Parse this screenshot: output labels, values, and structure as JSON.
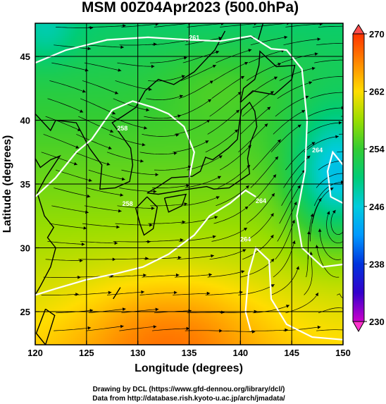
{
  "title": "MSM 00Z04Apr2023 (500.0hPa)",
  "footer": {
    "line1": "Drawing by DCL (https://www.gfd-dennou.org/library/dcl/)",
    "line2": "Data from http://database.rish.kyoto-u.ac.jp/arch/jmadata/"
  },
  "chart_data": {
    "type": "heatmap",
    "title": "MSM 00Z04Apr2023 (500.0hPa)",
    "xlabel": "Longitude (degrees)",
    "ylabel": "Latitude  (degrees)",
    "xlim": [
      120,
      150
    ],
    "ylim": [
      22.4,
      47.6
    ],
    "x_ticks": [
      "120",
      "125",
      "130",
      "135",
      "140",
      "145",
      "150"
    ],
    "x_tick_values": [
      120,
      125,
      130,
      135,
      140,
      145,
      150
    ],
    "y_ticks": [
      "25",
      "30",
      "35",
      "40",
      "45"
    ],
    "y_tick_values": [
      25,
      30,
      35,
      40,
      45
    ],
    "grid": true,
    "colorbar": {
      "range": [
        230,
        270
      ],
      "ticks": [
        "230",
        "238",
        "246",
        "254",
        "262",
        "270"
      ],
      "tick_values": [
        230,
        238,
        246,
        254,
        262,
        270
      ],
      "colors": [
        "#cc00cc",
        "#0000cc",
        "#0077ff",
        "#00ccff",
        "#00cc66",
        "#33cc33",
        "#99dd00",
        "#ffee00",
        "#ffaa00",
        "#ff6600",
        "#ff2200"
      ]
    },
    "contour_labels": [
      "261",
      "258",
      "258",
      "264",
      "264",
      "264"
    ],
    "cold_low_center": {
      "lon": 149,
      "lat": 35.5
    },
    "warm_region": {
      "lon": 135,
      "lat": 23
    }
  }
}
